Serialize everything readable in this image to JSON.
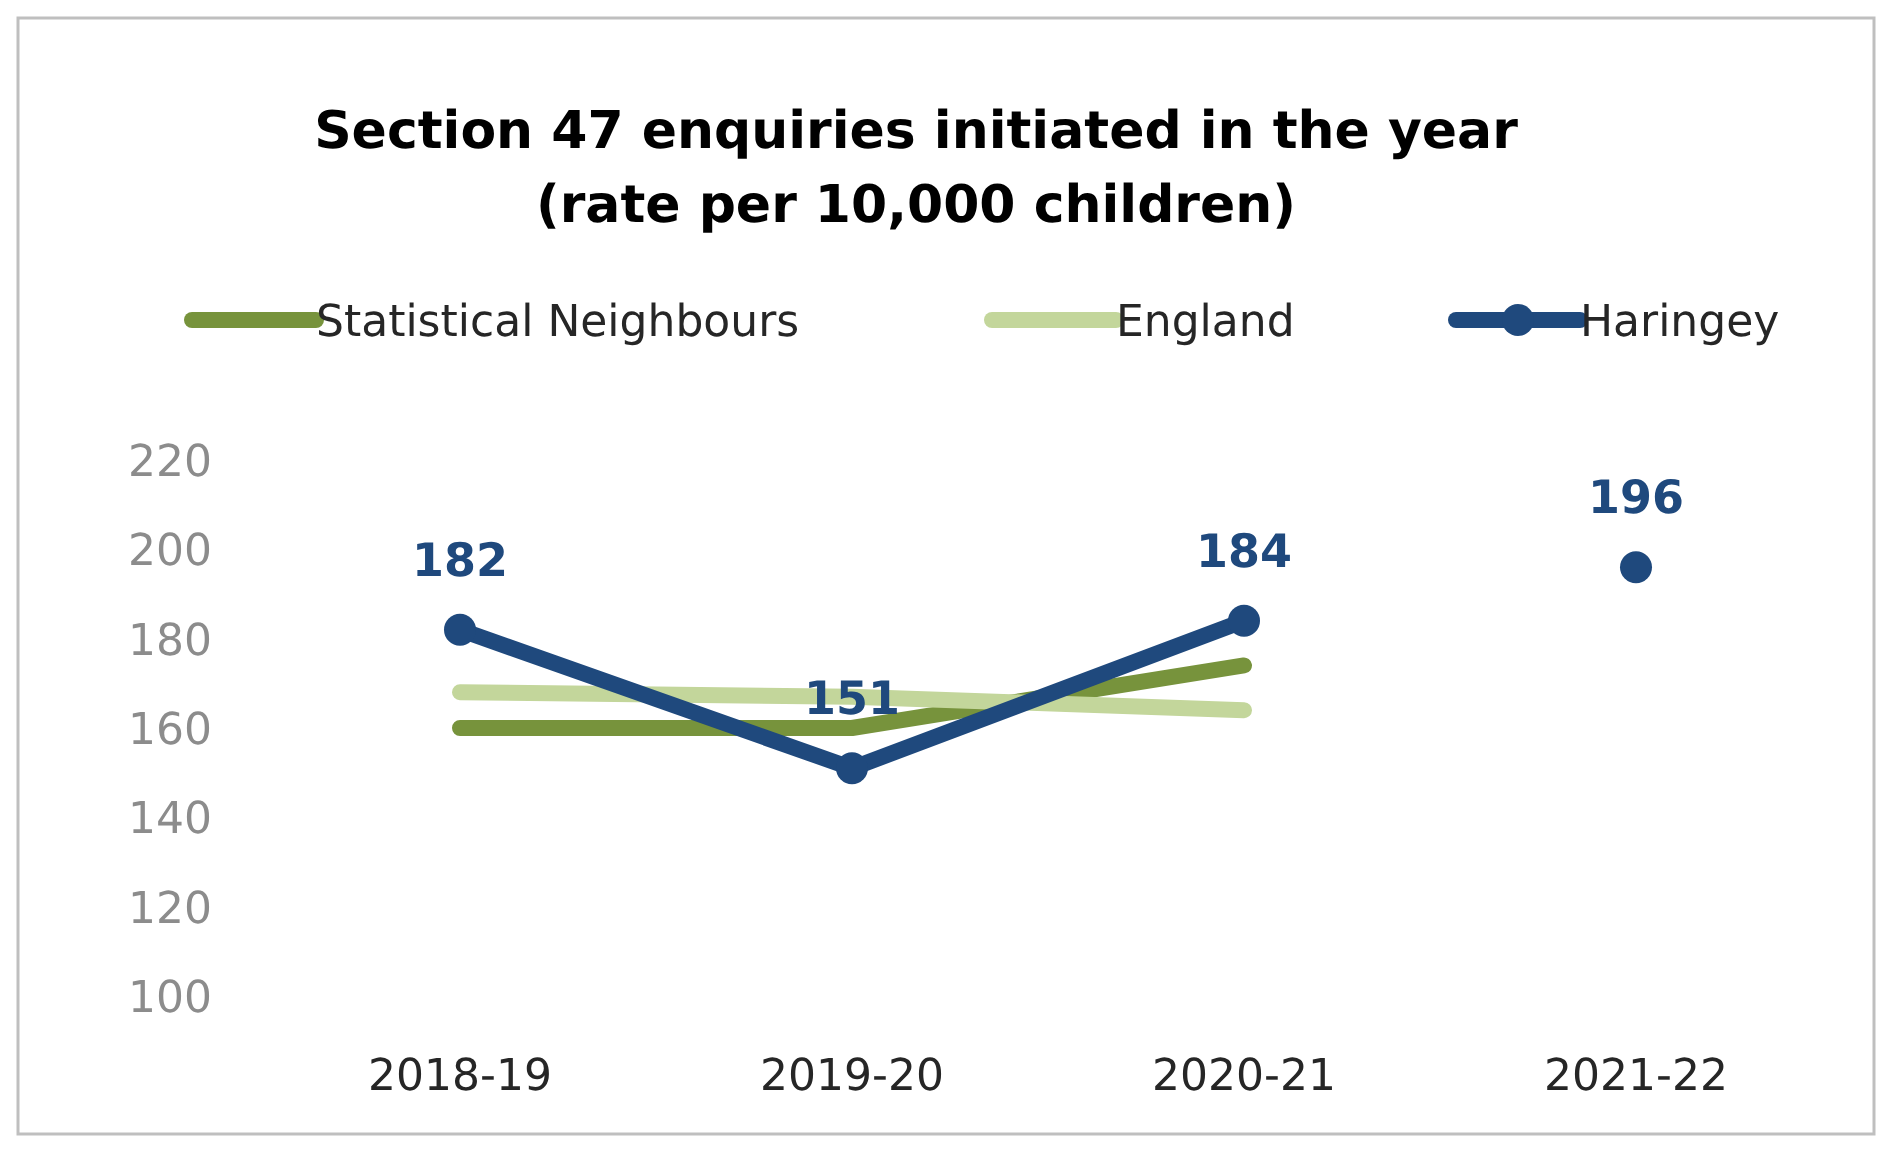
{
  "chart_data": {
    "type": "line",
    "title": "Section 47 enquiries initiated in the year",
    "subtitle": "(rate per 10,000 children)",
    "categories": [
      "2018-19",
      "2019-20",
      "2020-21",
      "2021-22"
    ],
    "ylim": [
      100,
      220
    ],
    "yticks": [
      100,
      120,
      140,
      160,
      180,
      200,
      220
    ],
    "grid": false,
    "legend": "top",
    "series": [
      {
        "name": "Statistical Neighbours",
        "color": "#77933c",
        "values": [
          160,
          160,
          174,
          null
        ],
        "marker": "none"
      },
      {
        "name": "England",
        "color": "#c3d69b",
        "values": [
          168,
          167,
          164,
          null
        ],
        "marker": "none"
      },
      {
        "name": "Haringey",
        "color": "#1f497d",
        "values": [
          182,
          151,
          184,
          null
        ],
        "marker": "circle",
        "value_labels": [
          "182",
          "151",
          "184",
          null
        ]
      },
      {
        "type": "scatter",
        "color": "#1f497d",
        "values": [
          null,
          null,
          null,
          196
        ],
        "marker": "circle",
        "value_labels": [
          null,
          null,
          null,
          "196"
        ]
      }
    ]
  }
}
